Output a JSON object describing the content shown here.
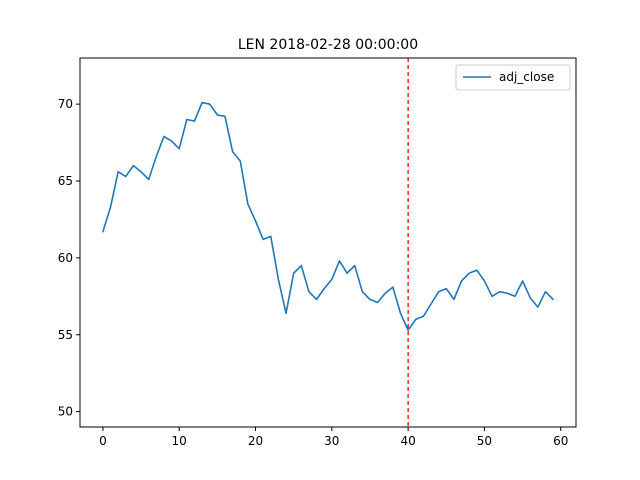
{
  "chart_data": {
    "type": "line",
    "title": "LEN 2018-02-28 00:00:00",
    "xlabel": "",
    "ylabel": "",
    "xlim": [
      -3,
      62
    ],
    "ylim": [
      49,
      73
    ],
    "xticks": [
      0,
      10,
      20,
      30,
      40,
      50,
      60
    ],
    "yticks": [
      50,
      55,
      60,
      65,
      70
    ],
    "grid": false,
    "legend": "top-right",
    "vline": {
      "x": 40,
      "color": "#e00000",
      "style": "dashed"
    },
    "series": [
      {
        "name": "adj_close",
        "color": "#1f77b4",
        "x": [
          0,
          1,
          2,
          3,
          4,
          5,
          6,
          7,
          8,
          9,
          10,
          11,
          12,
          13,
          14,
          15,
          16,
          17,
          18,
          19,
          20,
          21,
          22,
          23,
          24,
          25,
          26,
          27,
          28,
          29,
          30,
          31,
          32,
          33,
          34,
          35,
          36,
          37,
          38,
          39,
          40,
          41,
          42,
          43,
          44,
          45,
          46,
          47,
          48,
          49,
          50,
          51,
          52,
          53,
          54,
          55,
          56,
          57,
          58,
          59
        ],
        "values": [
          61.7,
          63.3,
          65.6,
          65.3,
          66.0,
          65.6,
          65.1,
          66.6,
          67.9,
          67.6,
          67.1,
          69.0,
          68.9,
          70.1,
          70.0,
          69.3,
          69.2,
          66.9,
          66.3,
          63.5,
          62.4,
          61.2,
          61.4,
          58.6,
          56.4,
          59.0,
          59.5,
          57.8,
          57.3,
          58.0,
          58.6,
          59.8,
          59.0,
          59.5,
          57.8,
          57.3,
          57.1,
          57.7,
          58.1,
          56.4,
          55.3,
          56.0,
          56.2,
          57.0,
          57.8,
          58.0,
          57.3,
          58.5,
          59.0,
          59.2,
          58.5,
          57.5,
          57.8,
          57.7,
          57.5,
          58.5,
          57.4,
          56.8,
          57.8,
          57.3
        ]
      }
    ]
  }
}
